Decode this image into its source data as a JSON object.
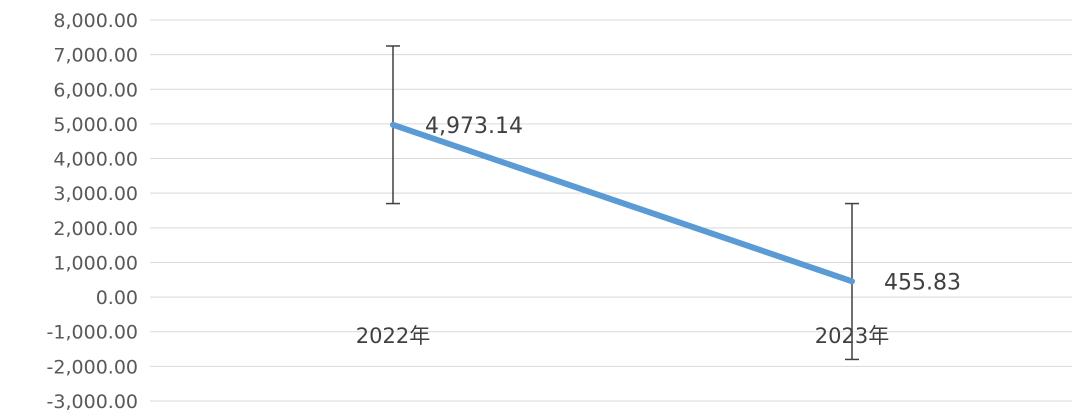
{
  "chart_data": {
    "type": "line",
    "title": "",
    "xlabel": "",
    "ylabel": "",
    "categories": [
      "2022年",
      "2023年"
    ],
    "series": [
      {
        "values": [
          4973.14,
          455.83
        ],
        "value_labels": [
          "4,973.14",
          "455.83"
        ],
        "color": "#5b9bd5",
        "error_bars": [
          {
            "low": 2700,
            "high": 7250
          },
          {
            "low": -1800,
            "high": 2700
          }
        ]
      }
    ],
    "ylim": [
      -3000,
      8000
    ],
    "y_ticks": [
      8000,
      7000,
      6000,
      5000,
      4000,
      3000,
      2000,
      1000,
      0,
      -1000,
      -2000,
      -3000
    ],
    "y_tick_labels": [
      "8,000.00",
      "7,000.00",
      "6,000.00",
      "5,000.00",
      "4,000.00",
      "3,000.00",
      "2,000.00",
      "1,000.00",
      "0.00",
      "-1,000.00",
      "-2,000.00",
      "-3,000.00"
    ],
    "grid": true,
    "legend": "none"
  }
}
